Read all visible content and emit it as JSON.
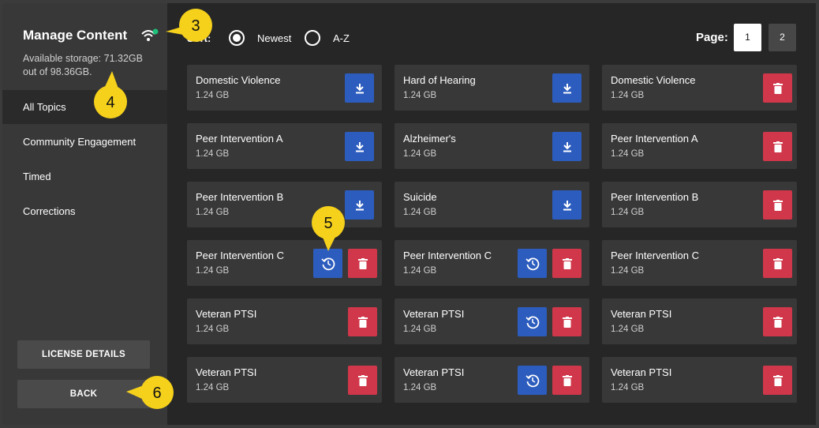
{
  "sidebar": {
    "title": "Manage Content",
    "storage": "Available storage: 71.32GB out of 98.36GB.",
    "nav": [
      "All Topics",
      "Community Engagement",
      "Timed",
      "Corrections"
    ],
    "buttons": [
      "LICENSE DETAILS",
      "BACK"
    ]
  },
  "sort": {
    "label": "Sort:",
    "options": [
      "Newest",
      "A-Z"
    ]
  },
  "pagination": {
    "label": "Page:",
    "pages": [
      "1",
      "2"
    ]
  },
  "cards": [
    [
      {
        "title": "Domestic Violence",
        "size": "1.24 GB"
      },
      {
        "title": "Hard of Hearing",
        "size": "1.24 GB"
      },
      {
        "title": "Domestic Violence",
        "size": "1.24 GB"
      }
    ],
    [
      {
        "title": "Peer Intervention A",
        "size": "1.24 GB"
      },
      {
        "title": "Alzheimer's",
        "size": "1.24 GB"
      },
      {
        "title": "Peer Intervention A",
        "size": "1.24 GB"
      }
    ],
    [
      {
        "title": "Peer Intervention B",
        "size": "1.24 GB"
      },
      {
        "title": "Suicide",
        "size": "1.24 GB"
      },
      {
        "title": "Peer Intervention B",
        "size": "1.24 GB"
      }
    ],
    [
      {
        "title": "Peer Intervention C",
        "size": "1.24 GB"
      },
      {
        "title": "Peer Intervention C",
        "size": "1.24 GB"
      },
      {
        "title": "Peer Intervention C",
        "size": "1.24 GB"
      }
    ],
    [
      {
        "title": "Veteran PTSI",
        "size": "1.24 GB"
      },
      {
        "title": "Veteran PTSI",
        "size": "1.24 GB"
      },
      {
        "title": "Veteran PTSI",
        "size": "1.24 GB"
      }
    ],
    [
      {
        "title": "Veteran PTSI",
        "size": "1.24 GB"
      },
      {
        "title": "Veteran PTSI",
        "size": "1.24 GB"
      },
      {
        "title": "Veteran PTSI",
        "size": "1.24 GB"
      }
    ]
  ],
  "callouts": [
    "3",
    "4",
    "5",
    "6"
  ]
}
